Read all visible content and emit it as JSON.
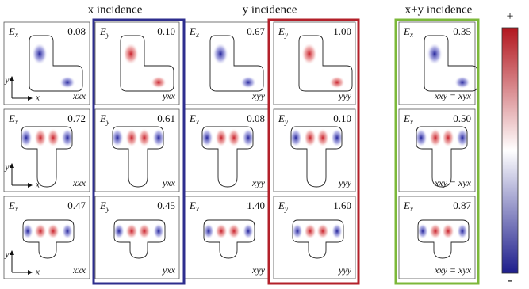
{
  "headers": [
    "x incidence",
    "y incidence",
    "x+y incidence"
  ],
  "panels": [
    [
      {
        "field": "E",
        "sub": "x",
        "value": "0.08",
        "tensor": "xxx"
      },
      {
        "field": "E",
        "sub": "y",
        "value": "0.10",
        "tensor": "yxx"
      },
      {
        "field": "E",
        "sub": "x",
        "value": "0.67",
        "tensor": "xyy"
      },
      {
        "field": "E",
        "sub": "y",
        "value": "1.00",
        "tensor": "yyy"
      },
      {
        "field": "E",
        "sub": "x",
        "value": "0.35",
        "tensor": "xxy = xyx"
      }
    ],
    [
      {
        "field": "E",
        "sub": "x",
        "value": "0.72",
        "tensor": "xxx"
      },
      {
        "field": "E",
        "sub": "y",
        "value": "0.61",
        "tensor": "yxx"
      },
      {
        "field": "E",
        "sub": "x",
        "value": "0.08",
        "tensor": "xyy"
      },
      {
        "field": "E",
        "sub": "y",
        "value": "0.10",
        "tensor": "yyy"
      },
      {
        "field": "E",
        "sub": "x",
        "value": "0.50",
        "tensor": "xxy = xyx"
      }
    ],
    [
      {
        "field": "E",
        "sub": "x",
        "value": "0.47",
        "tensor": "xxx"
      },
      {
        "field": "E",
        "sub": "y",
        "value": "0.45",
        "tensor": "yxx"
      },
      {
        "field": "E",
        "sub": "x",
        "value": "1.40",
        "tensor": "xyy"
      },
      {
        "field": "E",
        "sub": "y",
        "value": "1.60",
        "tensor": "yyy"
      },
      {
        "field": "E",
        "sub": "x",
        "value": "0.87",
        "tensor": "xxy = xyx"
      }
    ]
  ],
  "axes": {
    "x": "x",
    "y": "y"
  },
  "colorbar": {
    "max": "+",
    "min": "-"
  }
}
